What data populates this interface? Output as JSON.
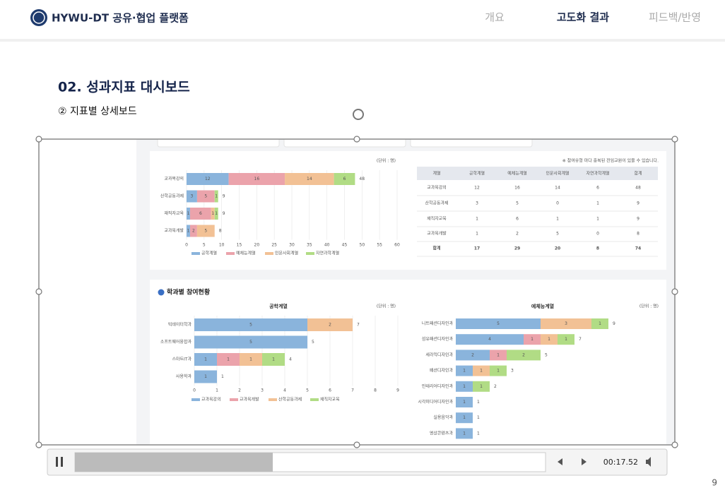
{
  "header": {
    "title": "HYWU-DT 공유·협업 플랫폼",
    "nav": [
      "개요",
      "고도화 결과",
      "피드백/반영"
    ]
  },
  "slide": {
    "title": "02. 성과지표 대시보드",
    "subtitle": "② 지표별 상세보드",
    "page": "9"
  },
  "video": {
    "time": "00:17.52"
  },
  "dashboard": {
    "note": "※ 참여유형 마다 중복된 전임교원이 있을 수 있습니다.",
    "section_title": "학과별 참여현황",
    "charts": [
      {
        "type": "bar",
        "orientation": "horizontal",
        "stacked": true,
        "unit": "(단위 : 명)",
        "categories": [
          "교과목강의",
          "산학공동과제",
          "재직자교육",
          "교과목개발"
        ],
        "series": [
          {
            "name": "공학계열",
            "color": "#8ab4dc",
            "values": [
              12,
              3,
              1,
              1
            ]
          },
          {
            "name": "예체능계열",
            "color": "#eba3ab",
            "values": [
              16,
              5,
              6,
              2
            ]
          },
          {
            "name": "인문사회계열",
            "color": "#f2c195",
            "values": [
              14,
              0,
              1,
              5
            ]
          },
          {
            "name": "자연과학계열",
            "color": "#b1dc85",
            "values": [
              6,
              1,
              1,
              0
            ]
          }
        ],
        "totals": [
          48,
          9,
          9,
          8
        ],
        "xlim": [
          0,
          60
        ],
        "xticks": [
          0,
          5,
          10,
          15,
          20,
          25,
          30,
          35,
          40,
          45,
          50,
          55,
          60
        ],
        "grid": true,
        "legend": "bottom"
      },
      {
        "type": "bar",
        "orientation": "horizontal",
        "stacked": true,
        "title": "공학계열",
        "unit": "(단위 : 명)",
        "categories": [
          "빅데이터학과",
          "소프트웨어융합과",
          "스마트IT과",
          "사용학과"
        ],
        "series": [
          {
            "name": "교과목강의",
            "color": "#8ab4dc",
            "values": [
              5,
              5,
              1,
              1
            ]
          },
          {
            "name": "교과목개발",
            "color": "#eba3ab",
            "values": [
              0,
              0,
              1,
              0
            ]
          },
          {
            "name": "산학공동과제",
            "color": "#f2c195",
            "values": [
              2,
              0,
              1,
              0
            ]
          },
          {
            "name": "재직자교육",
            "color": "#b1dc85",
            "values": [
              0,
              0,
              1,
              0
            ]
          }
        ],
        "totals": [
          7,
          5,
          4,
          1
        ],
        "xlim": [
          0,
          9
        ],
        "xticks": [
          0,
          1,
          2,
          3,
          4,
          5,
          6,
          7,
          8,
          9
        ],
        "grid": true,
        "legend": "bottom"
      },
      {
        "type": "bar",
        "orientation": "horizontal",
        "stacked": true,
        "title": "예체능계열",
        "unit": "(단위 : 명)",
        "categories": [
          "니트패션디자인과",
          "섬유패션디자인과",
          "세라믹디자인과",
          "패션디자인과",
          "인테리어디자인과",
          "시각미디어디자인과",
          "실용음악과",
          "영상콘텐츠과"
        ],
        "series": [
          {
            "color": "#8ab4dc",
            "values": [
              5,
              4,
              2,
              1,
              1,
              1,
              1,
              1
            ]
          },
          {
            "color": "#eba3ab",
            "values": [
              0,
              1,
              1,
              0,
              0,
              0,
              0,
              0
            ]
          },
          {
            "color": "#f2c195",
            "values": [
              3,
              1,
              0,
              1,
              0,
              0,
              0,
              0
            ]
          },
          {
            "color": "#b1dc85",
            "values": [
              1,
              1,
              2,
              1,
              1,
              0,
              0,
              0
            ]
          }
        ],
        "totals": [
          9,
          7,
          5,
          3,
          2,
          1,
          1,
          1
        ],
        "xlim": [
          0,
          12
        ]
      }
    ],
    "table": {
      "header": [
        "계열",
        "공학계열",
        "예체능계열",
        "인문사회계열",
        "자연과학계열",
        "합계"
      ],
      "rows": [
        [
          "교과목강의",
          12,
          16,
          14,
          6,
          48
        ],
        [
          "산학공동과제",
          3,
          5,
          0,
          1,
          9
        ],
        [
          "재직자교육",
          1,
          6,
          1,
          1,
          9
        ],
        [
          "교과목개발",
          1,
          2,
          5,
          0,
          8
        ],
        [
          "합계",
          17,
          29,
          20,
          8,
          74
        ]
      ]
    }
  }
}
